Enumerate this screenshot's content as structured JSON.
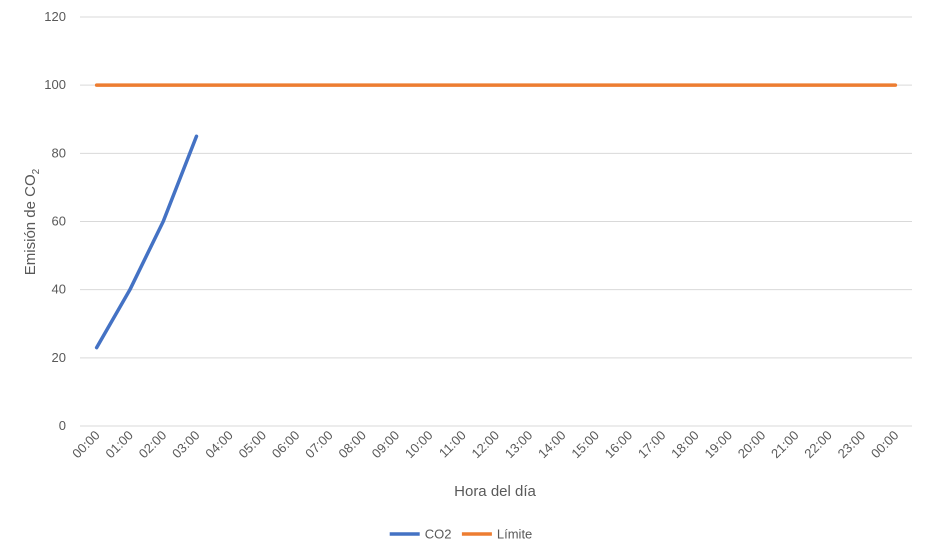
{
  "chart_data": {
    "type": "line",
    "title": "",
    "xlabel": "Hora del día",
    "ylabel": "Emisión de CO",
    "ylabel_subscript": "2",
    "categories": [
      "00:00",
      "01:00",
      "02:00",
      "03:00",
      "04:00",
      "05:00",
      "06:00",
      "07:00",
      "08:00",
      "09:00",
      "10:00",
      "11:00",
      "12:00",
      "13:00",
      "14:00",
      "15:00",
      "16:00",
      "17:00",
      "18:00",
      "19:00",
      "20:00",
      "21:00",
      "22:00",
      "23:00",
      "00:00"
    ],
    "ylim": [
      0,
      120
    ],
    "yticks": [
      0,
      20,
      40,
      60,
      80,
      100,
      120
    ],
    "grid": true,
    "legend_position": "bottom",
    "series": [
      {
        "name": "CO2",
        "color": "#4472C4",
        "values": [
          23,
          40,
          60,
          85,
          null,
          null,
          null,
          null,
          null,
          null,
          null,
          null,
          null,
          null,
          null,
          null,
          null,
          null,
          null,
          null,
          null,
          null,
          null,
          null,
          null
        ]
      },
      {
        "name": "Límite",
        "color": "#ED7D31",
        "values": [
          100,
          100,
          100,
          100,
          100,
          100,
          100,
          100,
          100,
          100,
          100,
          100,
          100,
          100,
          100,
          100,
          100,
          100,
          100,
          100,
          100,
          100,
          100,
          100,
          100
        ]
      }
    ]
  }
}
